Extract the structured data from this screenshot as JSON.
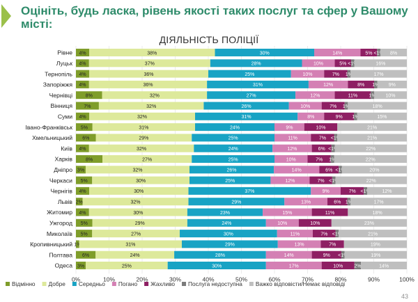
{
  "slide": {
    "title": "Оцініть, будь ласка, рівень якості таких послуг та сфер у Вашому місті:",
    "page_number": "43"
  },
  "chart_data": {
    "type": "bar",
    "orientation": "horizontal",
    "stacked": true,
    "title": "ДІЯЛЬНІСТЬ ПОЛІЦІЇ",
    "xlim": [
      0,
      100
    ],
    "x_ticks": [
      "0%",
      "10%",
      "20%",
      "30%",
      "40%",
      "50%",
      "60%",
      "70%",
      "80%",
      "90%",
      "100%"
    ],
    "legend_position": "bottom",
    "categories": [
      "Рівне",
      "Луцьк",
      "Тернопіль",
      "Запоріжжя",
      "Чернівці",
      "Вінниця",
      "Суми",
      "Івано-Франківськ",
      "Хмельницький",
      "Київ",
      "Харків",
      "Дніпро",
      "Черкаси",
      "Чернігів",
      "Львів",
      "Житомир",
      "Ужгород",
      "Миколаїв",
      "Кропивницький",
      "Полтава",
      "Одеса"
    ],
    "series": [
      {
        "name": "Відмінно",
        "color": "#7f9d2a",
        "values": [
          4,
          4,
          4,
          4,
          8,
          7,
          4,
          5,
          6,
          4,
          8,
          3,
          5,
          4,
          2,
          4,
          5,
          5,
          1,
          6,
          3
        ],
        "labels": [
          "4%",
          "4%",
          "4%",
          "4%",
          "8%",
          "7%",
          "4%",
          "5%",
          "6%",
          "4%",
          "8%",
          "3%",
          "5%",
          "4%",
          "2%",
          "4%",
          "5%",
          "5%",
          "1%",
          "6%",
          "3%"
        ]
      },
      {
        "name": "Добре",
        "color": "#dde99b",
        "values": [
          38,
          37,
          36,
          36,
          32,
          32,
          32,
          31,
          29,
          32,
          27,
          32,
          30,
          30,
          32,
          30,
          29,
          27,
          31,
          24,
          25
        ],
        "labels": [
          "38%",
          "37%",
          "36%",
          "36%",
          "32%",
          "32%",
          "32%",
          "31%",
          "29%",
          "32%",
          "27%",
          "32%",
          "30%",
          "30%",
          "32%",
          "30%",
          "29%",
          "27%",
          "31%",
          "24%",
          "25%"
        ]
      },
      {
        "name": "Середньо",
        "color": "#18a3c4",
        "values": [
          30,
          28,
          25,
          31,
          27,
          26,
          31,
          24,
          25,
          24,
          25,
          26,
          25,
          37,
          29,
          23,
          24,
          30,
          29,
          28,
          30
        ],
        "labels": [
          "30%",
          "28%",
          "25%",
          "31%",
          "27%",
          "26%",
          "31%",
          "24%",
          "25%",
          "24%",
          "25%",
          "26%",
          "25%",
          "37%",
          "29%",
          "23%",
          "24%",
          "30%",
          "29%",
          "28%",
          "30%"
        ]
      },
      {
        "name": "Погано",
        "color": "#d480b4",
        "values": [
          14,
          10,
          10,
          12,
          12,
          10,
          8,
          9,
          11,
          12,
          10,
          14,
          12,
          9,
          13,
          15,
          10,
          11,
          13,
          14,
          17
        ],
        "labels": [
          "14%",
          "10%",
          "10%",
          "12%",
          "12%",
          "10%",
          "8%",
          "9%",
          "11%",
          "12%",
          "10%",
          "14%",
          "12%",
          "9%",
          "13%",
          "15%",
          "10%",
          "11%",
          "13%",
          "14%",
          "17%"
        ]
      },
      {
        "name": "Жахливо",
        "color": "#8e1f63",
        "values": [
          5,
          5,
          7,
          8,
          11,
          7,
          9,
          10,
          7,
          6,
          7,
          6,
          7,
          7,
          6,
          11,
          10,
          7,
          7,
          9,
          10
        ],
        "labels": [
          "5%",
          "5%",
          "7%",
          "8%",
          "11%",
          "7%",
          "9%",
          "10%",
          "7%",
          "6%",
          "7%",
          "6%",
          "7%",
          "7%",
          "6%",
          "11%",
          "10%",
          "7%",
          "7%",
          "9%",
          "10%"
        ]
      },
      {
        "name": "Послуга недоступна",
        "color": "#7b7b7b",
        "values": [
          1,
          1,
          1,
          1,
          1,
          1,
          1,
          0,
          1,
          1,
          1,
          1,
          1,
          1,
          1,
          0,
          0,
          1,
          0,
          1,
          2
        ],
        "labels": [
          "<1%",
          "<1%",
          "1%",
          "1%",
          "1%",
          "1%",
          "1%",
          "",
          "<1%",
          "<1%",
          "1%",
          "<1%",
          "<1%",
          "<1%",
          "1%",
          "",
          "",
          "<1%",
          "",
          "<1%",
          "2%"
        ]
      },
      {
        "name": "Важко відповісти/Немає відповіді",
        "color": "#bfbfbf",
        "values": [
          8,
          16,
          17,
          9,
          10,
          18,
          15,
          21,
          21,
          22,
          22,
          20,
          22,
          12,
          17,
          18,
          23,
          21,
          19,
          19,
          14
        ],
        "labels": [
          "8%",
          "16%",
          "17%",
          "9%",
          "10%",
          "18%",
          "15%",
          "21%",
          "21%",
          "22%",
          "22%",
          "20%",
          "22%",
          "12%",
          "17%",
          "18%",
          "23%",
          "21%",
          "19%",
          "19%",
          "14%"
        ]
      }
    ]
  }
}
